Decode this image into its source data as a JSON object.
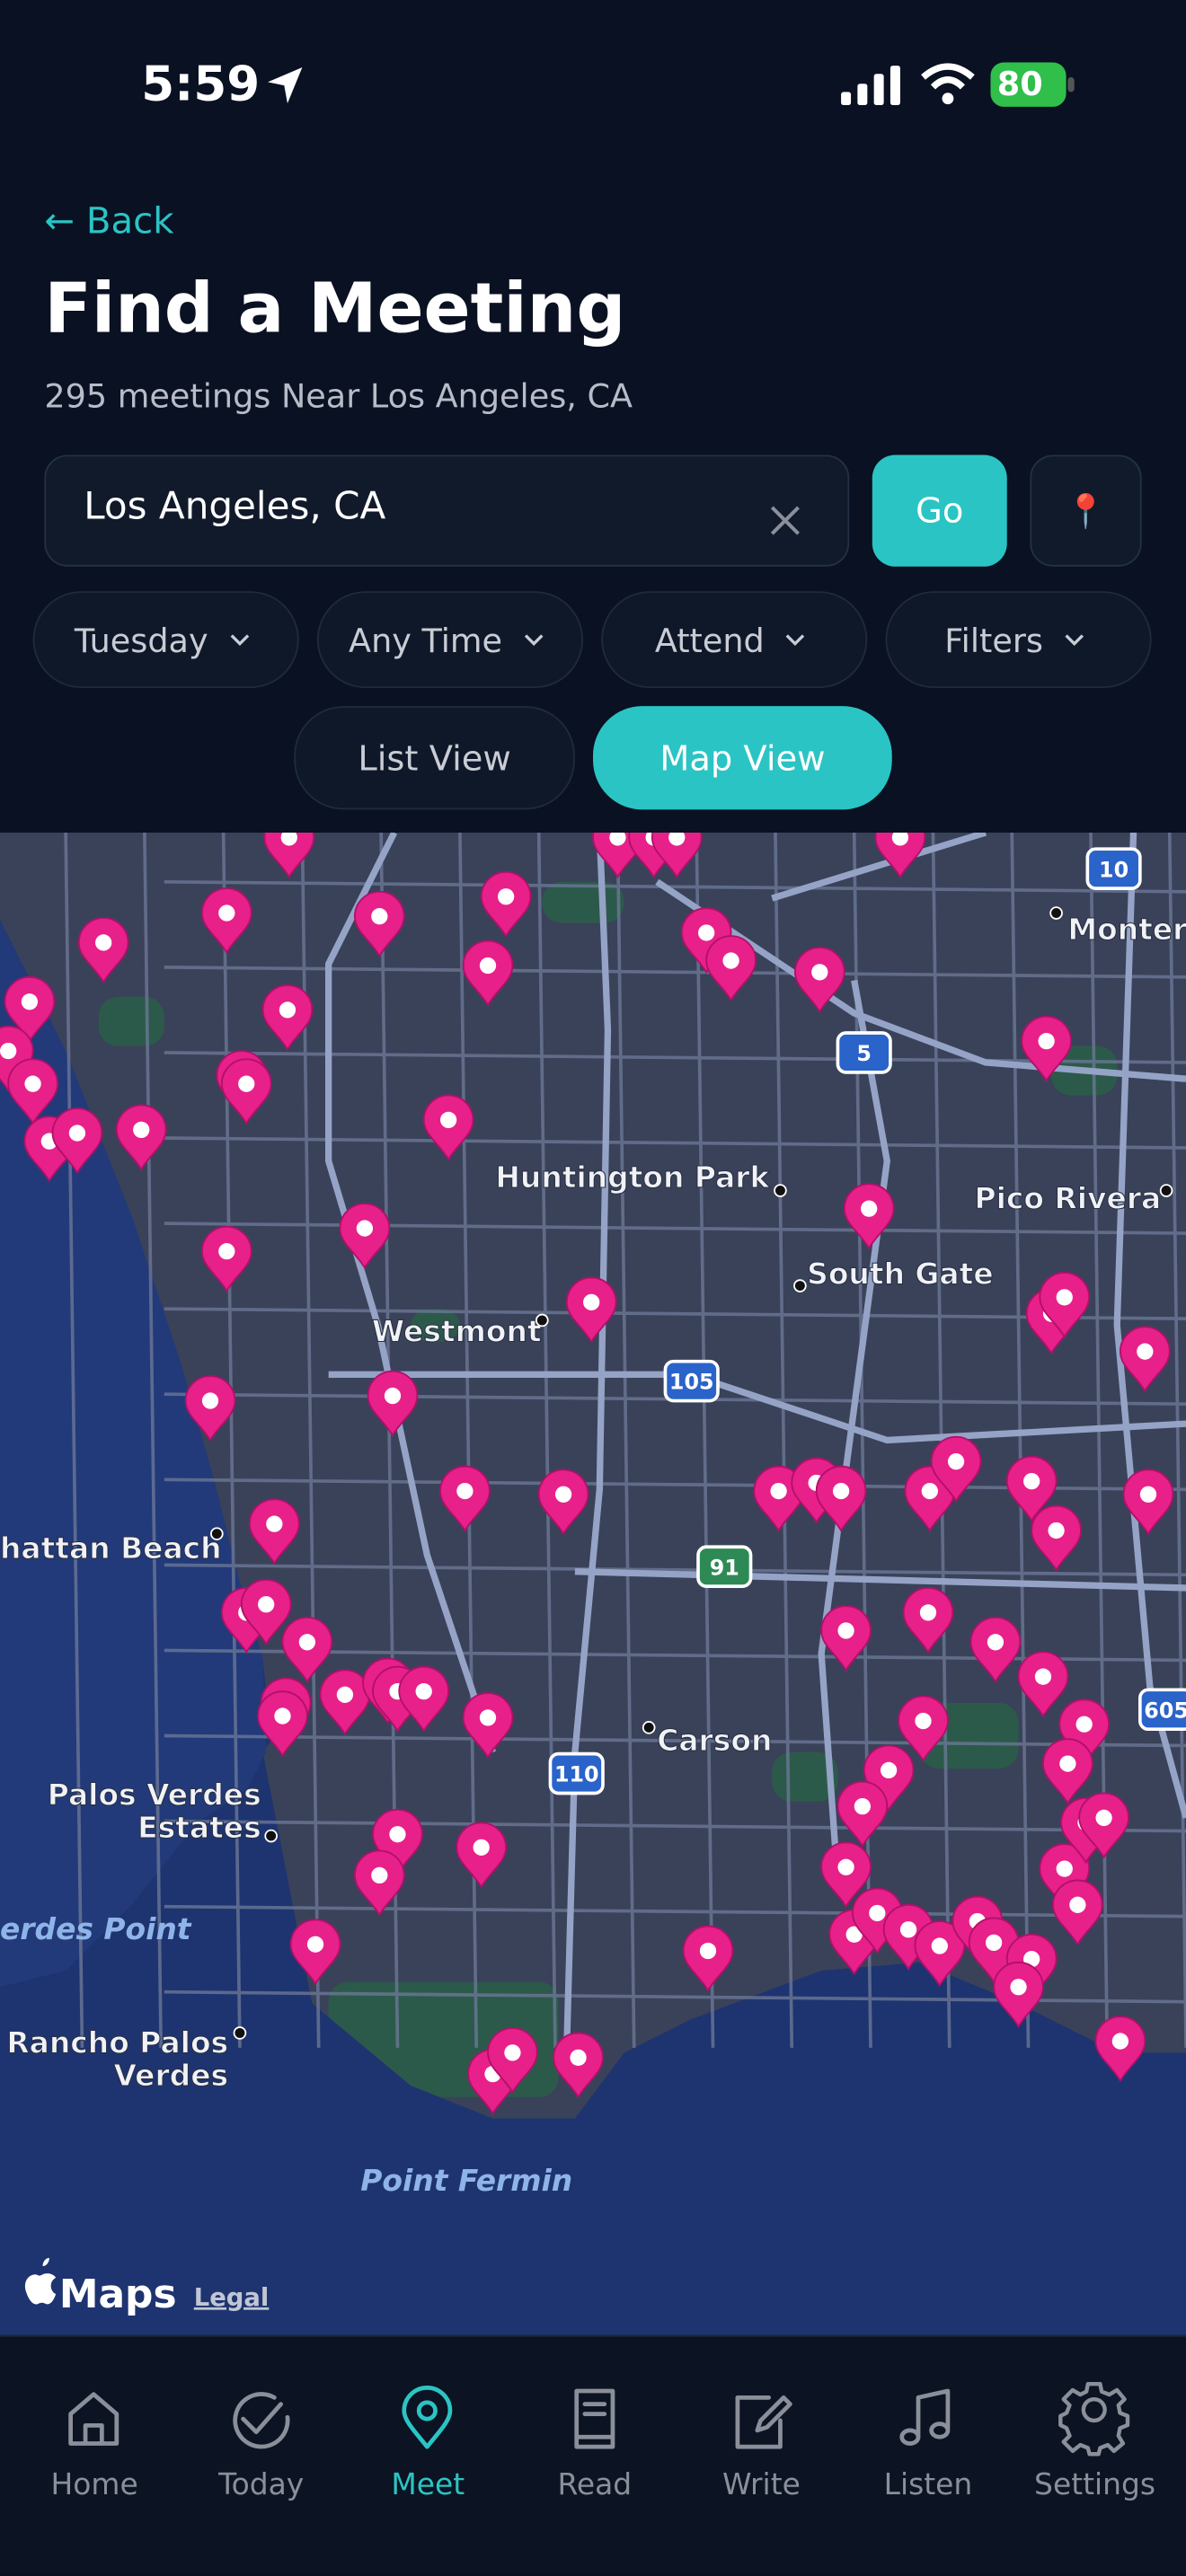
{
  "status_bar": {
    "time": "5:59",
    "battery": "80"
  },
  "header": {
    "back": "← Back",
    "title": "Find a Meeting",
    "subtitle": "295 meetings Near Los Angeles, CA"
  },
  "search": {
    "value": "Los Angeles, CA",
    "go": "Go",
    "locate": "📍"
  },
  "filters": [
    "Tuesday",
    "Any Time",
    "Attend",
    "Filters"
  ],
  "view_toggle": {
    "options": [
      "List View",
      "Map View"
    ],
    "selected": "Map View"
  },
  "map": {
    "places": [
      {
        "lines": [
          "Monter"
        ]
      },
      {
        "lines": [
          "Huntington Park"
        ]
      },
      {
        "lines": [
          "Pico Rivera"
        ]
      },
      {
        "lines": [
          "South Gate"
        ]
      },
      {
        "lines": [
          "Westmont"
        ]
      },
      {
        "lines": [
          "hattan Beach"
        ]
      },
      {
        "lines": [
          "Carson"
        ]
      },
      {
        "lines": [
          "Palos Verdes",
          "Estates"
        ]
      },
      {
        "lines": [
          "erdes Point"
        ]
      },
      {
        "lines": [
          "Rancho Palos",
          "Verdes"
        ]
      },
      {
        "lines": [
          "Point Fermin"
        ]
      }
    ],
    "highways": [
      "10",
      "5",
      "105",
      "91",
      "110",
      "605"
    ],
    "attribution": "Maps",
    "legal": "Legal"
  },
  "tab_bar": {
    "tabs": [
      "Home",
      "Today",
      "Meet",
      "Read",
      "Write",
      "Listen",
      "Settings"
    ],
    "active": "Meet"
  }
}
